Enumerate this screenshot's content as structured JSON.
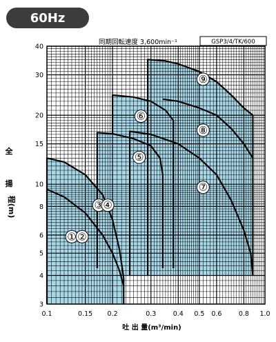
{
  "chart_data": {
    "type": "area",
    "badge": "60Hz",
    "subtitle": "同期回転速度 3,600min⁻¹",
    "model": "GSP3/4/TK/600",
    "xlabel": "吐 出 量(m³/min)",
    "ylabel": [
      "全",
      "揚",
      "程(m)"
    ],
    "x_scale": "log",
    "y_scale": "log",
    "xlim": [
      0.1,
      1.0
    ],
    "ylim": [
      3,
      40
    ],
    "grid": true,
    "x_ticks": [
      {
        "v": 0.1,
        "label": "0.1"
      },
      {
        "v": 0.15,
        "label": "0.15"
      },
      {
        "v": 0.2,
        "label": "0.2"
      },
      {
        "v": 0.3,
        "label": "0.3"
      },
      {
        "v": 0.4,
        "label": "0.4"
      },
      {
        "v": 0.5,
        "label": "0.5"
      },
      {
        "v": 0.6,
        "label": "0.6"
      },
      {
        "v": 0.8,
        "label": "0.8"
      },
      {
        "v": 1.0,
        "label": "1.0"
      }
    ],
    "y_ticks": [
      {
        "v": 3,
        "label": "3"
      },
      {
        "v": 4,
        "label": "4"
      },
      {
        "v": 5,
        "label": "5"
      },
      {
        "v": 6,
        "label": "6"
      },
      {
        "v": 8,
        "label": "8"
      },
      {
        "v": 10,
        "label": "10"
      },
      {
        "v": 15,
        "label": "15"
      },
      {
        "v": 20,
        "label": "20"
      },
      {
        "v": 30,
        "label": "30"
      },
      {
        "v": 40,
        "label": "40"
      }
    ],
    "regions": [
      {
        "labels": [
          "①",
          "②"
        ],
        "label_pos": [
          [
            0.13,
            5.9
          ],
          [
            0.145,
            5.9
          ]
        ],
        "boundary": [
          [
            0.1,
            3.0
          ],
          [
            0.1,
            13.0
          ],
          [
            0.12,
            12.5
          ],
          [
            0.15,
            11.0
          ],
          [
            0.18,
            9.0
          ],
          [
            0.2,
            7.0
          ],
          [
            0.215,
            5.2
          ],
          [
            0.225,
            3.9
          ],
          [
            0.225,
            3.0
          ]
        ]
      },
      {
        "labels": [
          "③",
          "④"
        ],
        "label_pos": [
          [
            0.173,
            8.1
          ],
          [
            0.19,
            8.1
          ]
        ],
        "boundary": [
          [
            0.1,
            9.5
          ],
          [
            0.12,
            8.8
          ],
          [
            0.15,
            7.5
          ],
          [
            0.18,
            6.0
          ],
          [
            0.2,
            5.0
          ],
          [
            0.215,
            4.2
          ],
          [
            0.225,
            3.6
          ]
        ]
      },
      {
        "labels": [
          "⑤"
        ],
        "label_pos": [
          [
            0.265,
            13.1
          ]
        ],
        "boundary": [
          [
            0.17,
            4.3
          ],
          [
            0.17,
            16.8
          ],
          [
            0.2,
            16.6
          ],
          [
            0.25,
            15.8
          ],
          [
            0.3,
            14.7
          ],
          [
            0.33,
            13.0
          ],
          [
            0.34,
            11.0
          ],
          [
            0.34,
            4.3
          ]
        ]
      },
      {
        "labels": [
          "⑥"
        ],
        "label_pos": [
          [
            0.27,
            19.8
          ]
        ],
        "boundary": [
          [
            0.2,
            16.6
          ],
          [
            0.2,
            24.5
          ],
          [
            0.25,
            24.0
          ],
          [
            0.3,
            23.0
          ],
          [
            0.35,
            21.0
          ],
          [
            0.38,
            19.0
          ],
          [
            0.38,
            4.3
          ]
        ]
      },
      {
        "labels": [
          "⑦"
        ],
        "label_pos": [
          [
            0.52,
            9.7
          ]
        ],
        "boundary": [
          [
            0.24,
            4.0
          ],
          [
            0.24,
            17.0
          ],
          [
            0.3,
            16.5
          ],
          [
            0.4,
            15.0
          ],
          [
            0.5,
            13.0
          ],
          [
            0.6,
            11.0
          ],
          [
            0.7,
            8.5
          ],
          [
            0.8,
            6.3
          ],
          [
            0.86,
            5.0
          ],
          [
            0.88,
            4.0
          ]
        ]
      },
      {
        "labels": [
          "⑧"
        ],
        "label_pos": [
          [
            0.52,
            17.2
          ]
        ],
        "boundary": [
          [
            0.34,
            23.5
          ],
          [
            0.4,
            23.0
          ],
          [
            0.5,
            21.5
          ],
          [
            0.6,
            20.0
          ],
          [
            0.7,
            17.5
          ],
          [
            0.8,
            15.0
          ],
          [
            0.88,
            13.0
          ]
        ]
      },
      {
        "labels": [
          "⑨"
        ],
        "label_pos": [
          [
            0.52,
            28.7
          ]
        ],
        "boundary": [
          [
            0.29,
            4.0
          ],
          [
            0.29,
            35.0
          ],
          [
            0.35,
            34.5
          ],
          [
            0.4,
            33.5
          ],
          [
            0.5,
            31.0
          ],
          [
            0.6,
            28.0
          ],
          [
            0.7,
            24.5
          ],
          [
            0.8,
            21.5
          ],
          [
            0.88,
            20.0
          ],
          [
            0.88,
            4.0
          ]
        ]
      }
    ],
    "colors": {
      "fill": "#a8d8e8",
      "curve": "#000000",
      "grid": "#000000",
      "badge_bg": "#3c3c3c",
      "badge_text": "#ffffff"
    }
  }
}
